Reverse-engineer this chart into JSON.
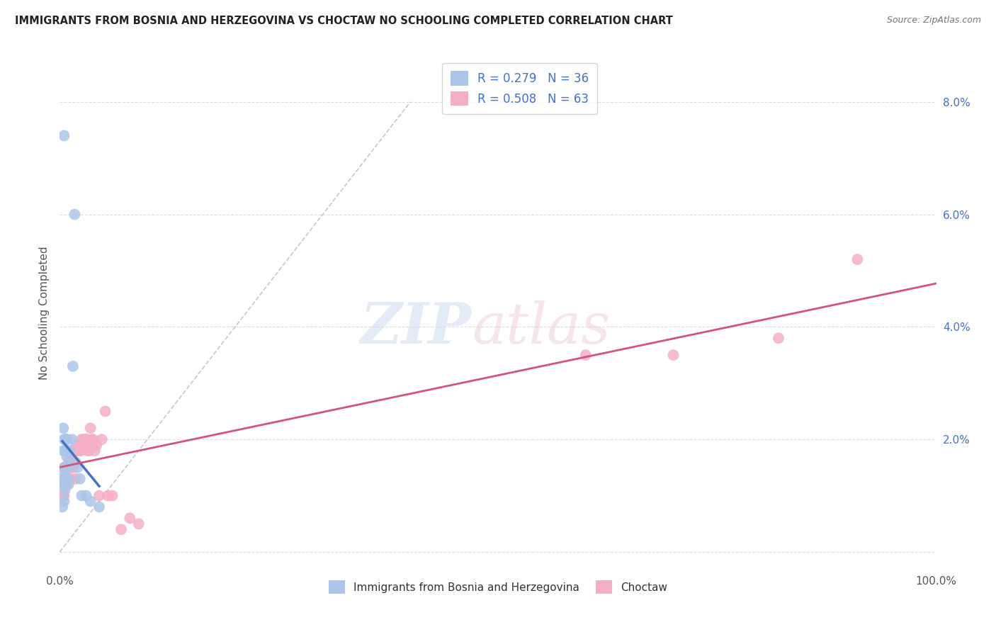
{
  "title": "IMMIGRANTS FROM BOSNIA AND HERZEGOVINA VS CHOCTAW NO SCHOOLING COMPLETED CORRELATION CHART",
  "source": "Source: ZipAtlas.com",
  "ylabel": "No Schooling Completed",
  "xlim": [
    0,
    1.0
  ],
  "ylim": [
    -0.003,
    0.088
  ],
  "blue_R": 0.279,
  "blue_N": 36,
  "pink_R": 0.508,
  "pink_N": 63,
  "blue_color": "#adc6e8",
  "pink_color": "#f5afc5",
  "blue_line_color": "#4472c4",
  "pink_line_color": "#d4547a",
  "dash_color": "#c8c8c8",
  "legend_text_color": "#4472c4",
  "background_color": "#ffffff",
  "grid_color": "#dddddd",
  "blue_scatter_x": [
    0.003,
    0.004,
    0.004,
    0.005,
    0.005,
    0.005,
    0.005,
    0.006,
    0.006,
    0.006,
    0.006,
    0.006,
    0.007,
    0.007,
    0.007,
    0.007,
    0.008,
    0.008,
    0.008,
    0.008,
    0.009,
    0.009,
    0.01,
    0.011,
    0.012,
    0.014,
    0.015,
    0.017,
    0.02,
    0.023,
    0.025,
    0.03,
    0.035,
    0.045,
    0.005,
    0.003
  ],
  "blue_scatter_y": [
    0.012,
    0.022,
    0.018,
    0.02,
    0.015,
    0.014,
    0.009,
    0.02,
    0.018,
    0.015,
    0.013,
    0.011,
    0.02,
    0.018,
    0.015,
    0.013,
    0.02,
    0.017,
    0.015,
    0.013,
    0.015,
    0.013,
    0.012,
    0.018,
    0.016,
    0.02,
    0.033,
    0.06,
    0.015,
    0.013,
    0.01,
    0.01,
    0.009,
    0.008,
    0.074,
    0.008
  ],
  "pink_scatter_x": [
    0.003,
    0.004,
    0.004,
    0.005,
    0.005,
    0.006,
    0.006,
    0.007,
    0.007,
    0.008,
    0.008,
    0.009,
    0.009,
    0.01,
    0.01,
    0.011,
    0.011,
    0.012,
    0.012,
    0.013,
    0.014,
    0.014,
    0.015,
    0.015,
    0.016,
    0.016,
    0.017,
    0.018,
    0.018,
    0.019,
    0.02,
    0.021,
    0.022,
    0.023,
    0.024,
    0.025,
    0.026,
    0.027,
    0.028,
    0.029,
    0.03,
    0.031,
    0.032,
    0.033,
    0.034,
    0.035,
    0.036,
    0.037,
    0.038,
    0.04,
    0.042,
    0.045,
    0.048,
    0.052,
    0.055,
    0.06,
    0.07,
    0.08,
    0.09,
    0.6,
    0.7,
    0.82,
    0.91
  ],
  "pink_scatter_y": [
    0.013,
    0.012,
    0.01,
    0.015,
    0.01,
    0.015,
    0.012,
    0.015,
    0.012,
    0.015,
    0.012,
    0.018,
    0.015,
    0.016,
    0.013,
    0.016,
    0.013,
    0.016,
    0.013,
    0.016,
    0.018,
    0.015,
    0.018,
    0.015,
    0.018,
    0.016,
    0.018,
    0.016,
    0.013,
    0.018,
    0.019,
    0.018,
    0.018,
    0.019,
    0.018,
    0.02,
    0.019,
    0.02,
    0.019,
    0.02,
    0.02,
    0.02,
    0.018,
    0.018,
    0.019,
    0.022,
    0.02,
    0.019,
    0.02,
    0.018,
    0.019,
    0.01,
    0.02,
    0.025,
    0.01,
    0.01,
    0.004,
    0.006,
    0.005,
    0.035,
    0.035,
    0.038,
    0.052
  ]
}
